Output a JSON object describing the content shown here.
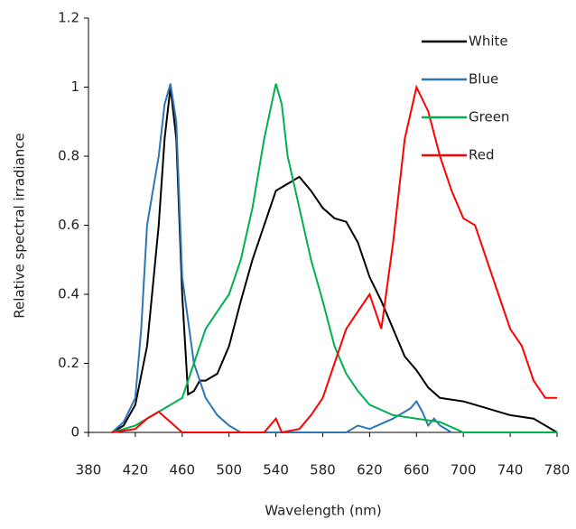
{
  "chart_data": {
    "type": "line",
    "xlabel": "Wavelength (nm)",
    "ylabel": "Relative spectral irradiance",
    "xlim": [
      380,
      780
    ],
    "xticks": [
      380,
      420,
      460,
      500,
      540,
      580,
      620,
      660,
      700,
      740,
      780
    ],
    "ylim": [
      0,
      1.2
    ],
    "yticks": [
      0,
      0.2,
      0.4,
      0.6,
      0.8,
      1,
      1.2
    ],
    "legend": "upper right",
    "series": [
      {
        "name": "White",
        "color": "#000000",
        "x": [
          400,
          410,
          420,
          430,
          440,
          445,
          450,
          455,
          460,
          465,
          470,
          475,
          480,
          490,
          500,
          510,
          520,
          530,
          540,
          550,
          560,
          570,
          580,
          590,
          600,
          610,
          620,
          630,
          640,
          650,
          660,
          670,
          680,
          700,
          720,
          740,
          760,
          780
        ],
        "values": [
          0,
          0.02,
          0.08,
          0.25,
          0.6,
          0.85,
          1.0,
          0.85,
          0.4,
          0.11,
          0.12,
          0.15,
          0.15,
          0.17,
          0.25,
          0.38,
          0.5,
          0.6,
          0.7,
          0.72,
          0.74,
          0.7,
          0.65,
          0.62,
          0.61,
          0.55,
          0.45,
          0.38,
          0.3,
          0.22,
          0.18,
          0.13,
          0.1,
          0.09,
          0.07,
          0.05,
          0.04,
          0
        ]
      },
      {
        "name": "Blue",
        "color": "#2e75b6",
        "x": [
          400,
          410,
          420,
          425,
          430,
          440,
          445,
          450,
          455,
          460,
          470,
          480,
          490,
          500,
          510,
          600,
          610,
          620,
          640,
          655,
          660,
          665,
          670,
          675,
          680,
          690
        ],
        "values": [
          0,
          0.03,
          0.1,
          0.3,
          0.6,
          0.8,
          0.95,
          1.01,
          0.9,
          0.45,
          0.2,
          0.1,
          0.05,
          0.02,
          0,
          0,
          0.02,
          0.01,
          0.04,
          0.07,
          0.09,
          0.06,
          0.02,
          0.04,
          0.02,
          0
        ]
      },
      {
        "name": "Green",
        "color": "#00b050",
        "x": [
          400,
          420,
          440,
          460,
          470,
          480,
          490,
          500,
          510,
          520,
          530,
          540,
          545,
          550,
          560,
          570,
          580,
          590,
          600,
          610,
          620,
          640,
          660,
          680,
          700,
          780
        ],
        "values": [
          0,
          0.02,
          0.06,
          0.1,
          0.2,
          0.3,
          0.35,
          0.4,
          0.5,
          0.65,
          0.85,
          1.01,
          0.95,
          0.8,
          0.65,
          0.5,
          0.38,
          0.25,
          0.17,
          0.12,
          0.08,
          0.05,
          0.04,
          0.03,
          0,
          0
        ]
      },
      {
        "name": "Red",
        "color": "#ff0000",
        "x": [
          400,
          420,
          430,
          440,
          450,
          460,
          530,
          540,
          545,
          560,
          570,
          580,
          590,
          600,
          610,
          620,
          630,
          640,
          650,
          660,
          670,
          680,
          690,
          700,
          710,
          720,
          730,
          740,
          750,
          760,
          770,
          780
        ],
        "values": [
          0,
          0.01,
          0.04,
          0.06,
          0.03,
          0,
          0,
          0.04,
          0,
          0.01,
          0.05,
          0.1,
          0.2,
          0.3,
          0.35,
          0.4,
          0.3,
          0.55,
          0.85,
          1.0,
          0.93,
          0.8,
          0.7,
          0.62,
          0.6,
          0.5,
          0.4,
          0.3,
          0.25,
          0.15,
          0.1,
          0.1
        ]
      }
    ]
  }
}
